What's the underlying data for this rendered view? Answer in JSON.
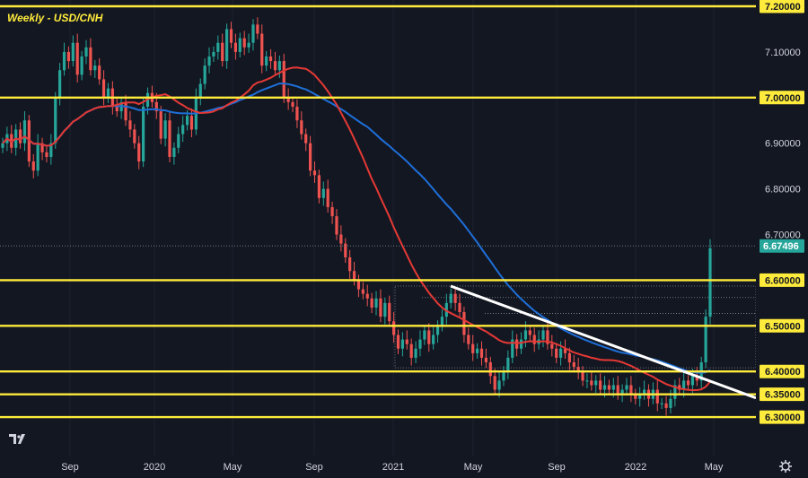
{
  "chart_data": {
    "type": "candlestick",
    "title": "Weekly - USD/CNH",
    "ylim": [
      6.265,
      7.205
    ],
    "y_ticks": [
      "7.20000",
      "7.10000",
      "7.00000",
      "6.90000",
      "6.80000",
      "6.70000",
      "6.60000",
      "6.50000",
      "6.40000",
      "6.35000",
      "6.30000"
    ],
    "x_ticks": [
      "Sep",
      "2020",
      "May",
      "Sep",
      "2021",
      "May",
      "Sep",
      "2022",
      "May"
    ],
    "last_price": "6.67496",
    "horizontal_levels": [
      7.2,
      7.0,
      6.6,
      6.5,
      6.4,
      6.35,
      6.3
    ],
    "up_color": "#26a69a",
    "down_color": "#ef5350",
    "level_color": "#ffeb3b",
    "ma_fast_color": "#e53935",
    "ma_slow_color": "#1e6fd9",
    "trendline_color": "#ffffff",
    "closes": [
      6.9,
      6.92,
      6.89,
      6.93,
      6.9,
      6.95,
      6.86,
      6.84,
      6.9,
      6.88,
      6.87,
      6.9,
      7.0,
      7.06,
      7.1,
      7.08,
      7.12,
      7.05,
      7.09,
      7.11,
      7.06,
      7.07,
      7.04,
      7.0,
      7.02,
      6.98,
      6.97,
      6.99,
      6.95,
      6.93,
      6.9,
      6.86,
      6.98,
      7.01,
      6.99,
      6.97,
      6.91,
      6.95,
      6.87,
      6.89,
      6.92,
      6.94,
      6.96,
      6.93,
      7.0,
      7.03,
      7.07,
      7.09,
      7.1,
      7.12,
      7.08,
      7.15,
      7.12,
      7.1,
      7.13,
      7.11,
      7.12,
      7.16,
      7.14,
      7.07,
      7.09,
      7.08,
      7.06,
      7.08,
      7.0,
      6.99,
      6.98,
      6.95,
      6.92,
      6.9,
      6.84,
      6.83,
      6.78,
      6.8,
      6.76,
      6.74,
      6.7,
      6.68,
      6.65,
      6.62,
      6.6,
      6.58,
      6.57,
      6.56,
      6.54,
      6.56,
      6.52,
      6.55,
      6.51,
      6.48,
      6.45,
      6.47,
      6.46,
      6.43,
      6.45,
      6.47,
      6.49,
      6.46,
      6.48,
      6.5,
      6.52,
      6.55,
      6.57,
      6.55,
      6.53,
      6.48,
      6.46,
      6.44,
      6.45,
      6.43,
      6.42,
      6.39,
      6.36,
      6.38,
      6.4,
      6.43,
      6.47,
      6.45,
      6.47,
      6.49,
      6.48,
      6.46,
      6.47,
      6.49,
      6.46,
      6.45,
      6.43,
      6.45,
      6.44,
      6.42,
      6.41,
      6.4,
      6.38,
      6.38,
      6.37,
      6.38,
      6.36,
      6.37,
      6.36,
      6.37,
      6.35,
      6.36,
      6.37,
      6.35,
      6.34,
      6.35,
      6.36,
      6.34,
      6.36,
      6.33,
      6.33,
      6.32,
      6.34,
      6.37,
      6.36,
      6.38,
      6.37,
      6.39,
      6.38,
      6.42,
      6.52,
      6.67
    ]
  }
}
